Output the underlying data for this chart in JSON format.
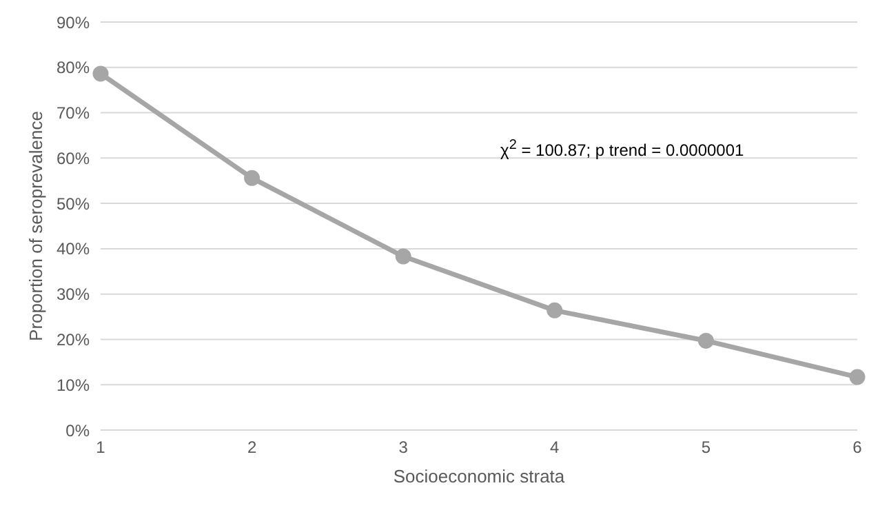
{
  "chart_data": {
    "type": "line",
    "xlabel": "Socioeconomic strata",
    "ylabel": "Proportion of seroprevalence",
    "categories": [
      "1",
      "2",
      "3",
      "4",
      "5",
      "6"
    ],
    "series": [
      {
        "color": "#a6a6a6",
        "values": [
          78.6,
          55.6,
          38.3,
          26.4,
          19.7,
          11.7
        ]
      }
    ],
    "ylim": [
      0,
      90
    ],
    "yticks": [
      {
        "value": 0,
        "label": "0%"
      },
      {
        "value": 10,
        "label": "10%"
      },
      {
        "value": 20,
        "label": "20%"
      },
      {
        "value": 30,
        "label": "30%"
      },
      {
        "value": 40,
        "label": "40%"
      },
      {
        "value": 50,
        "label": "50%"
      },
      {
        "value": 60,
        "label": "60%"
      },
      {
        "value": 70,
        "label": "70%"
      },
      {
        "value": 80,
        "label": "80%"
      },
      {
        "value": 90,
        "label": "90%"
      }
    ],
    "grid": "y",
    "marker": "circle",
    "line_style": "solid",
    "legend": false,
    "annotations": [
      "χ$^{2}$ = 100.87; p trend = 0.0000001"
    ]
  }
}
